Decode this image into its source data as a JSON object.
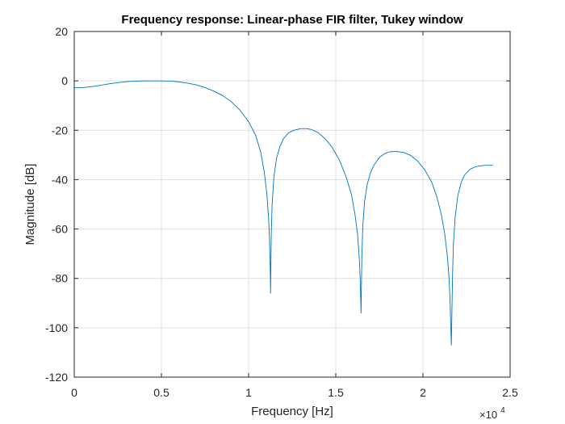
{
  "chart_data": {
    "type": "line",
    "title": "Frequency response: Linear-phase FIR filter, Tukey window",
    "xlabel": "Frequency [Hz]",
    "ylabel": "Magnitude [dB]",
    "xlim": [
      0,
      25000
    ],
    "ylim": [
      -120,
      20
    ],
    "xticks": [
      0,
      5000,
      10000,
      15000,
      20000,
      25000
    ],
    "xtick_labels": [
      "0",
      "0.5",
      "1",
      "1.5",
      "2",
      "2.5"
    ],
    "yticks": [
      20,
      0,
      -20,
      -40,
      -60,
      -80,
      -100,
      -120
    ],
    "ytick_labels": [
      "20",
      "0",
      "-20",
      "-40",
      "-60",
      "-80",
      "-100",
      "-120"
    ],
    "x_exponent": {
      "base": "×10",
      "power": "4"
    },
    "grid": true,
    "colors": {
      "line": "#0072bd",
      "grid": "#dfdfdf",
      "axes": "#262626"
    },
    "series": [
      {
        "x": [
          0,
          500,
          1000,
          1500,
          2000,
          2500,
          3000,
          3500,
          4000,
          4500,
          5000,
          5500,
          6000,
          6500,
          7000,
          7500,
          8000,
          8500,
          9000,
          9500,
          10000,
          10400,
          10700,
          10900,
          11050,
          11150,
          11200,
          11240,
          11260,
          11300,
          11350,
          11450,
          11600,
          11800,
          12000,
          12300,
          12600,
          13000,
          13300,
          13600,
          14000,
          14400,
          14800,
          15200,
          15600,
          15900,
          16100,
          16250,
          16350,
          16400,
          16430,
          16450,
          16470,
          16500,
          16550,
          16650,
          16800,
          17000,
          17200,
          17500,
          17800,
          18100,
          18500,
          18900,
          19300,
          19700,
          20100,
          20500,
          20800,
          21050,
          21250,
          21400,
          21500,
          21560,
          21600,
          21630,
          21660,
          21700,
          21750,
          21850,
          22000,
          22200,
          22400,
          22700,
          23000,
          23300,
          23600,
          24000
        ],
        "y": [
          -2.8,
          -2.7,
          -2.3,
          -1.8,
          -1.2,
          -0.7,
          -0.3,
          -0.1,
          0,
          0,
          0,
          -0.1,
          -0.4,
          -0.9,
          -1.6,
          -2.7,
          -4.1,
          -5.9,
          -8.4,
          -11.8,
          -16.5,
          -22,
          -29,
          -37,
          -46,
          -56,
          -64,
          -75,
          -86,
          -62,
          -50,
          -39,
          -31.5,
          -26.5,
          -23.5,
          -21,
          -20,
          -19.3,
          -19.3,
          -19.7,
          -21,
          -23.5,
          -27,
          -32,
          -39,
          -46,
          -54,
          -62,
          -72,
          -80,
          -88,
          -94,
          -84,
          -70,
          -59,
          -49,
          -42,
          -37,
          -34,
          -31,
          -29.5,
          -28.7,
          -28.6,
          -29,
          -30.2,
          -32.5,
          -36,
          -41,
          -47,
          -54,
          -62,
          -71,
          -80,
          -90,
          -100,
          -107,
          -94,
          -78,
          -66,
          -55,
          -46.5,
          -41,
          -38,
          -35.8,
          -34.8,
          -34.4,
          -34.2,
          -34.2
        ]
      }
    ]
  }
}
